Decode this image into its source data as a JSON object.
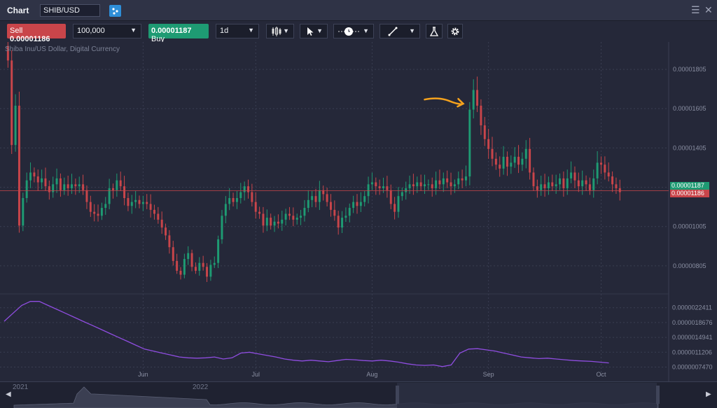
{
  "header": {
    "title": "Chart",
    "symbol": "SHIB/USD"
  },
  "toolbar": {
    "sell_label": "Sell",
    "sell_price": "0.00001186",
    "quantity": "100,000",
    "buy_price": "0.00001187",
    "buy_label": "Buy",
    "timeframe": "1d",
    "tools": [
      "candlestick-icon",
      "cursor-icon",
      "clock-icon",
      "line-draw-icon",
      "flask-icon",
      "gear-icon"
    ]
  },
  "chart_info": {
    "instrument": "Shiba Inu/US Dollar, Digital Currency",
    "buy_tag": "0.00001187",
    "sell_tag": "0.00001186"
  },
  "colors": {
    "background": "#252839",
    "up": "#1e9b73",
    "down": "#c9454a",
    "indicator": "#8f4de0",
    "arrow": "#f5a21d"
  },
  "chart_data": {
    "type": "candlestick",
    "title": "",
    "y_tick_labels": [
      "0.00001805",
      "0.00001605",
      "0.00001405",
      "0.00001205",
      "0.00001005",
      "0.00000805"
    ],
    "y_ticks": [
      1.805e-05,
      1.605e-05,
      1.405e-05,
      1.205e-05,
      1.005e-05,
      8.05e-06
    ],
    "ylim": [
      6.8e-06,
      1.88e-05
    ],
    "x_tick_labels": [
      "Jun",
      "Jul",
      "Aug",
      "Sep",
      "Oct"
    ],
    "x_ticks": [
      "2022-06-01",
      "2022-07-01",
      "2022-08-01",
      "2022-09-01",
      "2022-10-01"
    ],
    "xlim": [
      "2022-04-25",
      "2022-10-19"
    ],
    "close_series": {
      "start": "2022-04-26",
      "interval": "1d",
      "values": [
        1.85e-05,
        1.42e-05,
        1.62e-05,
        1.01e-05,
        1.15e-05,
        1.24e-05,
        1.28e-05,
        1.26e-05,
        1.23e-05,
        1.25e-05,
        1.21e-05,
        1.18e-05,
        1.22e-05,
        1.25e-05,
        1.19e-05,
        1.22e-05,
        1.2e-05,
        1.22e-05,
        1.21e-05,
        1.22e-05,
        1.19e-05,
        1.13e-05,
        1.08e-05,
        1.07e-05,
        1.06e-05,
        1.1e-05,
        1.12e-05,
        1.2e-05,
        1.19e-05,
        1.24e-05,
        1.21e-05,
        1.15e-05,
        1.11e-05,
        1.13e-05,
        1.14e-05,
        1.12e-05,
        1.13e-05,
        1.12e-05,
        1.09e-05,
        1.07e-05,
        1.04e-05,
        1e-05,
        9.6e-06,
        9e-06,
        8.3e-06,
        7.8e-06,
        7.6e-06,
        8.4e-06,
        8.7e-06,
        8e-06,
        7.8e-06,
        8.2e-06,
        8e-06,
        7.5e-06,
        8.1e-06,
        8.2e-06,
        9.4e-06,
        1.06e-05,
        1.12e-05,
        1.15e-05,
        1.13e-05,
        1.15e-05,
        1.18e-05,
        1.21e-05,
        1.18e-05,
        1.13e-05,
        1.08e-05,
        1.07e-05,
        1.01e-05,
        1.05e-05,
        1.01e-05,
        1.03e-05,
        1.02e-05,
        1.04e-05,
        1.07e-05,
        1.06e-05,
        1.04e-05,
        1.05e-05,
        1.06e-05,
        1.1e-05,
        1.14e-05,
        1.16e-05,
        1.13e-05,
        1.19e-05,
        1.17e-05,
        1.13e-05,
        1.09e-05,
        1.06e-05,
        1e-05,
        1.05e-05,
        1.06e-05,
        1.1e-05,
        1.13e-05,
        1.11e-05,
        1.13e-05,
        1.16e-05,
        1.22e-05,
        1.23e-05,
        1.21e-05,
        1.2e-05,
        1.21e-05,
        1.19e-05,
        1.12e-05,
        1.08e-05,
        1.16e-05,
        1.18e-05,
        1.2e-05,
        1.22e-05,
        1.21e-05,
        1.23e-05,
        1.21e-05,
        1.22e-05,
        1.22e-05,
        1.2e-05,
        1.24e-05,
        1.22e-05,
        1.25e-05,
        1.23e-05,
        1.21e-05,
        1.22e-05,
        1.25e-05,
        1.24e-05,
        1.26e-05,
        1.6e-05,
        1.7e-05,
        1.62e-05,
        1.52e-05,
        1.45e-05,
        1.4e-05,
        1.35e-05,
        1.32e-05,
        1.3e-05,
        1.36e-05,
        1.31e-05,
        1.33e-05,
        1.36e-05,
        1.32e-05,
        1.35e-05,
        1.4e-05,
        1.28e-05,
        1.21e-05,
        1.19e-05,
        1.22e-05,
        1.2e-05,
        1.23e-05,
        1.21e-05,
        1.22e-05,
        1.25e-05,
        1.2e-05,
        1.25e-05,
        1.28e-05,
        1.24e-05,
        1.21e-05,
        1.24e-05,
        1.22e-05,
        1.19e-05,
        1.25e-05,
        1.33e-05,
        1.32e-05,
        1.28e-05,
        1.26e-05,
        1.22e-05,
        1.2e-05,
        1.18e-05
      ]
    },
    "indicator": {
      "type": "line",
      "y_tick_labels": [
        "0.0000022411",
        "0.0000018676",
        "0.0000014941",
        "0.0000011206",
        "0.0000007470"
      ],
      "y_ticks": [
        2.2411e-06,
        1.8676e-06,
        1.4941e-06,
        1.1206e-06,
        7.47e-07
      ],
      "ylim": [
        6.5e-07,
        2.5e-06
      ],
      "values": [
        1.9e-06,
        2.1e-06,
        2.3e-06,
        2.4e-06,
        2.4e-06,
        2.3e-06,
        2.2e-06,
        2.1e-06,
        2e-06,
        1.9e-06,
        1.8e-06,
        1.7e-06,
        1.6e-06,
        1.5e-06,
        1.4e-06,
        1.3e-06,
        1.2e-06,
        1.15e-06,
        1.1e-06,
        1.05e-06,
        1e-06,
        9.8e-07,
        9.7e-07,
        9.8e-07,
        1e-06,
        9.5e-07,
        9.8e-07,
        1.1e-06,
        1.12e-06,
        1.08e-06,
        1.04e-06,
        1e-06,
        9.5e-07,
        9.2e-07,
        9e-07,
        9.2e-07,
        9e-07,
        8.8e-07,
        9.1e-07,
        9.4e-07,
        9.3e-07,
        9.1e-07,
        9e-07,
        9.2e-07,
        9e-07,
        8.7e-07,
        8.3e-07,
        8e-07,
        7.9e-07,
        8e-07,
        7.6e-07,
        8e-07,
        1.1e-06,
        1.2e-06,
        1.21e-06,
        1.18e-06,
        1.15e-06,
        1.1e-06,
        1.05e-06,
        1e-06,
        9.8e-07,
        9.6e-07,
        9.7e-07,
        9.5e-07,
        9.3e-07,
        9.1e-07,
        9e-07,
        8.9e-07,
        8.7e-07,
        8.5e-07
      ]
    },
    "annotation": "arrow pointing to the spike candle",
    "navigator": {
      "year_labels": [
        "2021",
        "2022"
      ]
    }
  }
}
